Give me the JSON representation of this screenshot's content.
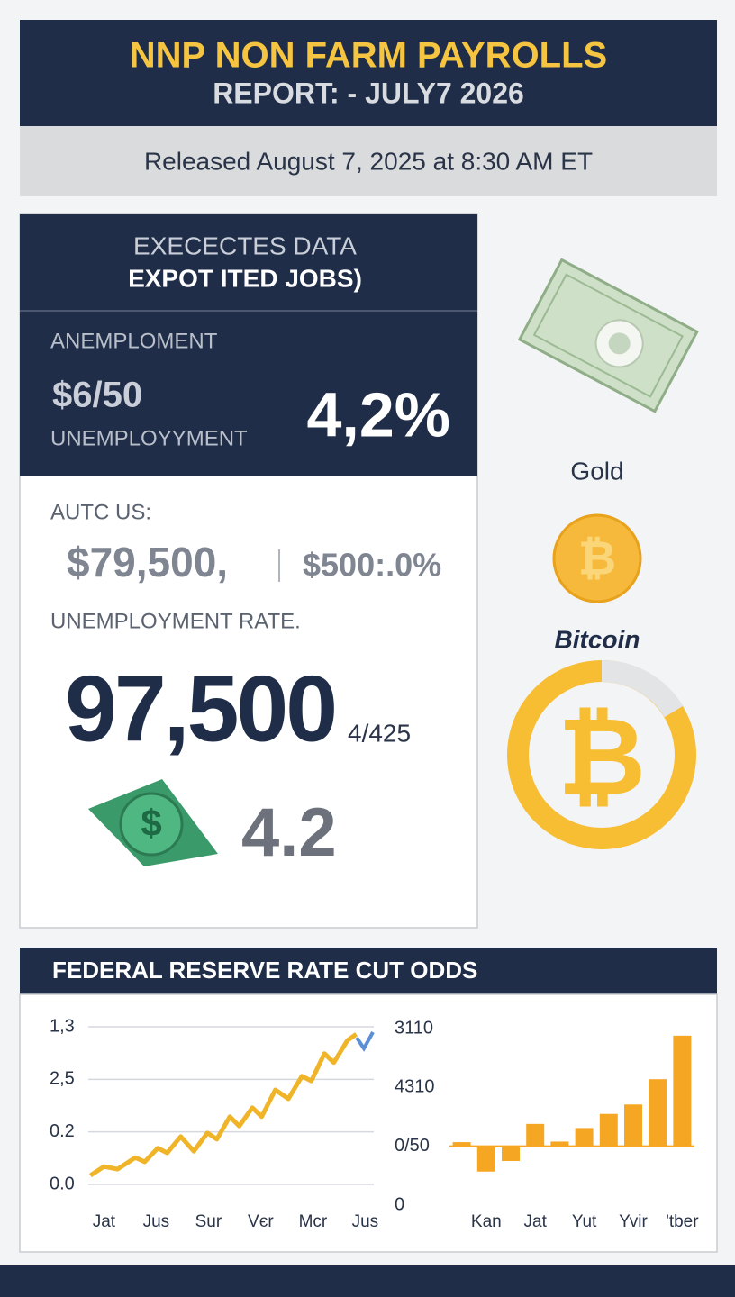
{
  "header": {
    "title": "NNP NON FARM PAYROLLS",
    "subtitle": "REPORT: - JULY7 2026"
  },
  "release": "Released August 7, 2025 at 8:30 AM ET",
  "panel": {
    "heading": "EXECECTES DATA",
    "subheading": "EXPOT ITED JOBS)",
    "label1": "ANEMPLOMENT",
    "value1": "$6/50",
    "label2": "UNEMPLOYYMENT",
    "big": "4,2%",
    "label3": "AUTC US:",
    "value3a": "$79,500,",
    "value3b": "$500:.0%",
    "label4": "UNEMPLOYMENT RATE.",
    "big2": "97,500",
    "small2": "4/425",
    "value5": "4.2"
  },
  "side": {
    "gold": "Gold",
    "bitcoin": "Bitcoin"
  },
  "charts_title": "FEDERAL RESERVE RATE CUT ODDS",
  "chart_data": [
    {
      "type": "line",
      "color": "#f0b429",
      "x": [
        -0.26,
        0,
        0.26,
        0.6,
        0.78,
        1.03,
        1.21,
        1.47,
        1.72,
        1.98,
        2.16,
        2.41,
        2.59,
        2.84,
        3.02,
        3.28,
        3.53,
        3.79,
        3.97,
        4.22,
        4.4,
        4.66,
        4.83
      ],
      "values": [
        0.17,
        0.34,
        0.29,
        0.51,
        0.43,
        0.69,
        0.6,
        0.91,
        0.63,
        0.98,
        0.86,
        1.29,
        1.11,
        1.46,
        1.29,
        1.8,
        1.63,
        2.06,
        1.97,
        2.49,
        2.32,
        2.74,
        2.86
      ],
      "xlim": [
        -0.3,
        5.2
      ],
      "xticks": [
        {
          "value": 0,
          "label": "Jat"
        },
        {
          "value": 1,
          "label": "Jus"
        },
        {
          "value": 2,
          "label": "Sur"
        },
        {
          "value": 3,
          "label": "Vєr"
        },
        {
          "value": 4,
          "label": "Mcr"
        },
        {
          "value": 5,
          "label": "Jus"
        }
      ],
      "ylim": [
        0,
        3
      ],
      "yticks": [
        {
          "value": 0,
          "label": "0.0"
        },
        {
          "value": 1,
          "label": "0.2"
        },
        {
          "value": 2,
          "label": "2,5"
        },
        {
          "value": 3,
          "label": "1,3"
        }
      ],
      "grid": true
    },
    {
      "type": "bar",
      "color": "#f5a623",
      "categories": [
        null,
        "Kan",
        null,
        "Jat",
        null,
        "Yut",
        null,
        "Yvir",
        null,
        "'tber"
      ],
      "values": [
        0.07,
        -0.43,
        -0.25,
        0.38,
        0.08,
        0.31,
        0.55,
        0.71,
        1.14,
        1.88
      ],
      "ylim": [
        -1,
        2
      ],
      "yticks": [
        {
          "value": -1,
          "label": "0"
        },
        {
          "value": 0,
          "label": "0/50"
        },
        {
          "value": 1,
          "label": "4310"
        },
        {
          "value": 2,
          "label": "3110"
        }
      ]
    }
  ]
}
